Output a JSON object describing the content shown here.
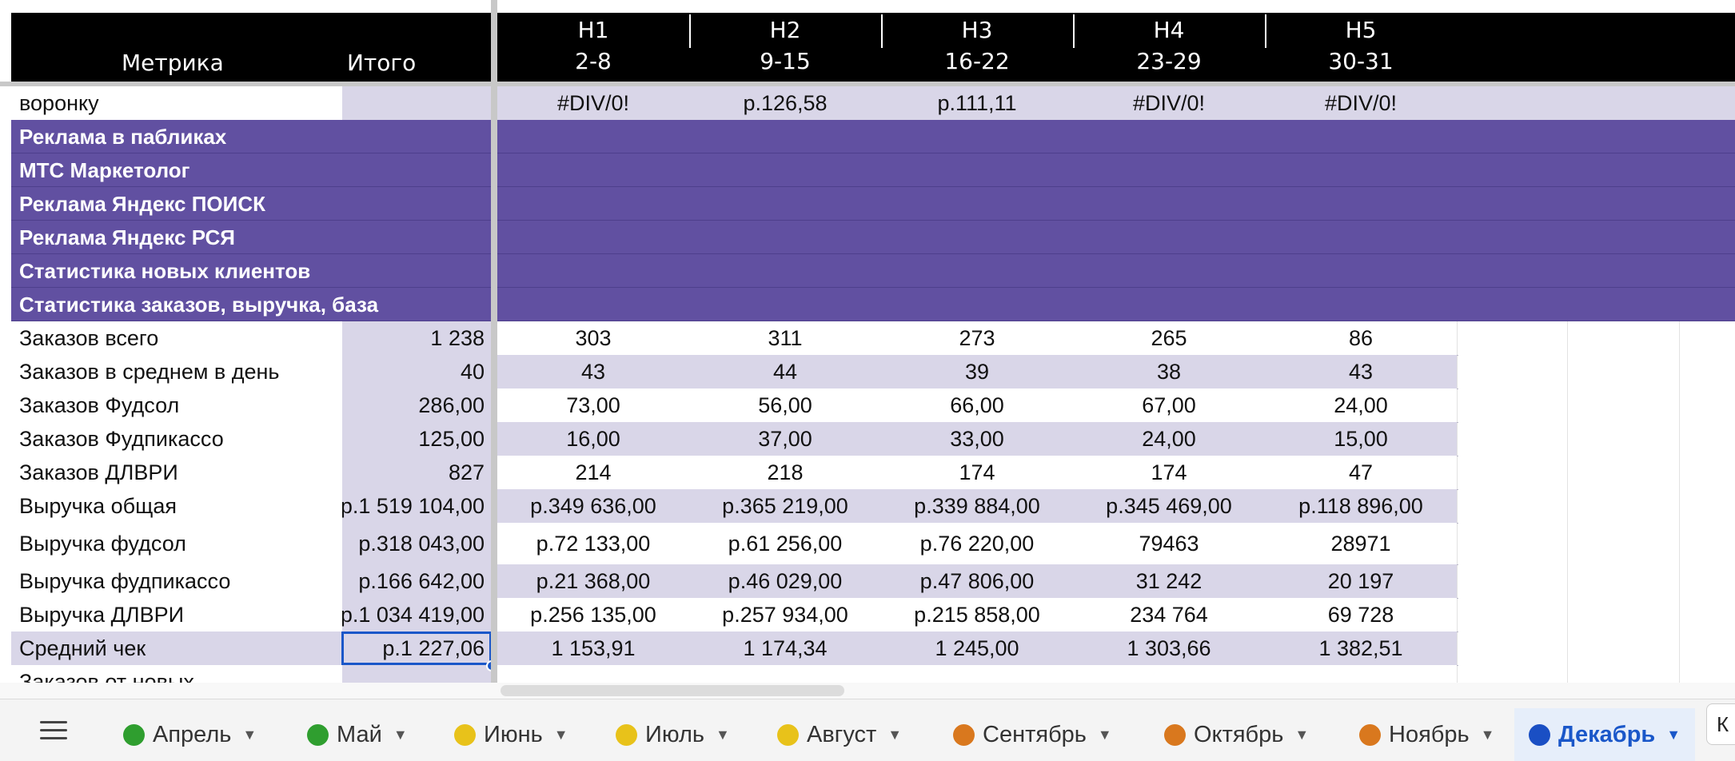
{
  "header": {
    "metric_label": "Метрика",
    "total_label": "Итого",
    "weeks": [
      {
        "name": "Н1",
        "range": "2-8"
      },
      {
        "name": "Н2",
        "range": "9-15"
      },
      {
        "name": "Н3",
        "range": "16-22"
      },
      {
        "name": "Н4",
        "range": "23-29"
      },
      {
        "name": "Н5",
        "range": "30-31"
      }
    ]
  },
  "funnel_row": {
    "label": "воронку",
    "total": "",
    "values": [
      "#DIV/0!",
      "р.126,58",
      "р.111,11",
      "#DIV/0!",
      "#DIV/0!"
    ]
  },
  "sections": [
    "Реклама в пабликах",
    "МТС Маркетолог",
    "Реклама Яндекс ПОИСК",
    "Реклама Яндекс РСЯ",
    "Статистика новых клиентов",
    "Статистика заказов, выручка, база"
  ],
  "rows": [
    {
      "label": "Заказов всего",
      "total": "1 238",
      "values": [
        "303",
        "311",
        "273",
        "265",
        "86"
      ]
    },
    {
      "label": "Заказов в среднем в день",
      "total": "40",
      "values": [
        "43",
        "44",
        "39",
        "38",
        "43"
      ]
    },
    {
      "label": "Заказов Фудсол",
      "total": "286,00",
      "values": [
        "73,00",
        "56,00",
        "66,00",
        "67,00",
        "24,00"
      ]
    },
    {
      "label": "Заказов Фудпикассо",
      "total": "125,00",
      "values": [
        "16,00",
        "37,00",
        "33,00",
        "24,00",
        "15,00"
      ]
    },
    {
      "label": "Заказов ДЛВРИ",
      "total": "827",
      "values": [
        "214",
        "218",
        "174",
        "174",
        "47"
      ]
    },
    {
      "label": "Выручка общая",
      "total": "р.1 519 104,00",
      "values": [
        "р.349 636,00",
        "р.365 219,00",
        "р.339 884,00",
        "р.345 469,00",
        "р.118 896,00"
      ]
    },
    {
      "label": "Выручка фудсол",
      "total": "р.318 043,00",
      "values": [
        "р.72 133,00",
        "р.61 256,00",
        "р.76 220,00",
        "79463",
        "28971"
      ]
    },
    {
      "label": "Выручка фудпикассо",
      "total": "р.166 642,00",
      "values": [
        "р.21 368,00",
        "р.46 029,00",
        "р.47 806,00",
        "31 242",
        "20 197"
      ]
    },
    {
      "label": "Выручка ДЛВРИ",
      "total": "р.1 034 419,00",
      "values": [
        "р.256 135,00",
        "р.257 934,00",
        "р.215 858,00",
        "234 764",
        "69 728"
      ]
    },
    {
      "label": "Средний чек",
      "total": "р.1 227,06",
      "values": [
        "1 153,91",
        "1 174,34",
        "1 245,00",
        "1 303,66",
        "1 382,51"
      ]
    },
    {
      "label": "Заказов от новых",
      "total": "",
      "values": [
        "",
        "",
        "",
        "",
        ""
      ]
    }
  ],
  "tabs": [
    {
      "label": "Апрель",
      "color": "#2f9e2f"
    },
    {
      "label": "Май",
      "color": "#2f9e2f"
    },
    {
      "label": "Июнь",
      "color": "#e8c21a"
    },
    {
      "label": "Июль",
      "color": "#e8c21a"
    },
    {
      "label": "Август",
      "color": "#e8c21a"
    },
    {
      "label": "Сентябрь",
      "color": "#d9781e"
    },
    {
      "label": "Октябрь",
      "color": "#d9781e"
    },
    {
      "label": "Ноябрь",
      "color": "#d9781e"
    },
    {
      "label": "Декабрь",
      "color": "#1a4fc4"
    }
  ],
  "active_tab": "Декабрь",
  "cutoff_label": "К",
  "colors": {
    "header_bg": "#000000",
    "section_bg": "#6150a1",
    "band_bg": "#d9d6e8",
    "selection": "#1a57c9"
  }
}
